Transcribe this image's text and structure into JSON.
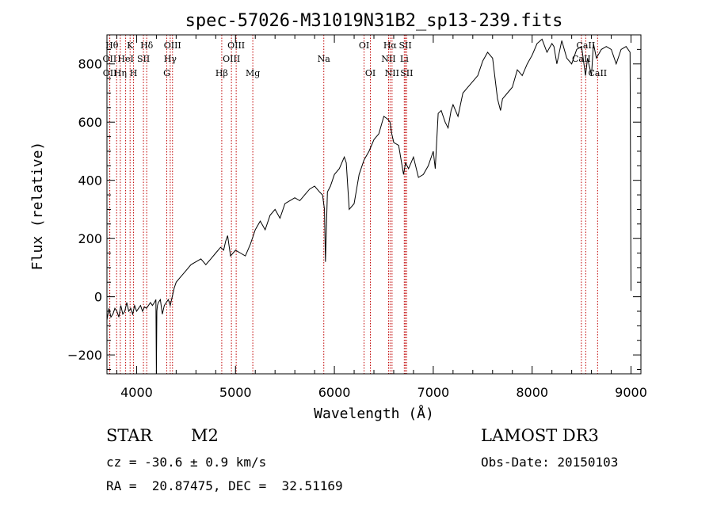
{
  "chart_data": {
    "type": "line",
    "title": "spec-57026-M31019N31B2_sp13-239.fits",
    "xlabel": "Wavelength (Å)",
    "ylabel": "Flux (relative)",
    "xlim": [
      3700,
      9100
    ],
    "ylim": [
      -265,
      900
    ],
    "xticks": [
      4000,
      5000,
      6000,
      7000,
      8000,
      9000
    ],
    "yticks": [
      -200,
      0,
      200,
      400,
      600,
      800
    ],
    "series": [
      {
        "name": "flux",
        "x": [
          3700,
          3720,
          3740,
          3760,
          3780,
          3800,
          3820,
          3840,
          3860,
          3880,
          3900,
          3920,
          3940,
          3960,
          3980,
          4000,
          4020,
          4040,
          4060,
          4080,
          4100,
          4120,
          4140,
          4160,
          4180,
          4195,
          4200,
          4205,
          4210,
          4220,
          4240,
          4260,
          4280,
          4300,
          4320,
          4340,
          4360,
          4380,
          4400,
          4450,
          4500,
          4550,
          4600,
          4650,
          4700,
          4750,
          4800,
          4850,
          4880,
          4900,
          4920,
          4950,
          5000,
          5050,
          5100,
          5150,
          5200,
          5250,
          5300,
          5350,
          5400,
          5450,
          5500,
          5550,
          5600,
          5650,
          5700,
          5750,
          5800,
          5850,
          5880,
          5900,
          5910,
          5930,
          5960,
          6000,
          6050,
          6100,
          6120,
          6150,
          6200,
          6250,
          6300,
          6350,
          6400,
          6450,
          6500,
          6540,
          6563,
          6580,
          6600,
          6650,
          6700,
          6720,
          6750,
          6800,
          6850,
          6900,
          6950,
          7000,
          7020,
          7050,
          7080,
          7120,
          7150,
          7180,
          7200,
          7250,
          7300,
          7350,
          7400,
          7450,
          7500,
          7550,
          7600,
          7650,
          7680,
          7700,
          7750,
          7800,
          7850,
          7900,
          7950,
          8000,
          8050,
          8100,
          8150,
          8200,
          8220,
          8250,
          8300,
          8350,
          8400,
          8450,
          8500,
          8540,
          8560,
          8600,
          8620,
          8650,
          8700,
          8750,
          8800,
          8850,
          8900,
          8950,
          8990,
          9000
        ],
        "values": [
          -80,
          -40,
          -70,
          -60,
          -40,
          -50,
          -70,
          -30,
          -60,
          -50,
          -20,
          -50,
          -40,
          -60,
          -30,
          -50,
          -40,
          -30,
          -50,
          -35,
          -40,
          -30,
          -20,
          -30,
          -20,
          -10,
          -270,
          -50,
          -30,
          -20,
          -10,
          -60,
          -30,
          -20,
          -10,
          -30,
          0,
          30,
          50,
          70,
          90,
          110,
          120,
          130,
          110,
          130,
          150,
          170,
          160,
          190,
          210,
          140,
          160,
          150,
          140,
          180,
          230,
          260,
          230,
          280,
          300,
          270,
          320,
          330,
          340,
          330,
          350,
          370,
          380,
          360,
          350,
          300,
          120,
          360,
          380,
          420,
          440,
          480,
          460,
          300,
          320,
          420,
          470,
          500,
          540,
          560,
          620,
          610,
          600,
          560,
          530,
          520,
          420,
          460,
          440,
          480,
          410,
          420,
          450,
          500,
          440,
          630,
          640,
          600,
          580,
          640,
          660,
          620,
          700,
          720,
          740,
          760,
          810,
          840,
          820,
          680,
          640,
          680,
          700,
          720,
          780,
          760,
          800,
          830,
          870,
          885,
          840,
          870,
          860,
          800,
          880,
          820,
          800,
          850,
          860,
          760,
          820,
          760,
          870,
          820,
          850,
          860,
          850,
          800,
          850,
          860,
          840,
          20
        ]
      }
    ],
    "lines": [
      {
        "name": "Hθ",
        "wave": 3798
      },
      {
        "name": "OII",
        "wave": 3727
      },
      {
        "name": "OII",
        "wave": 3729
      },
      {
        "name": "Hη",
        "wave": 3835
      },
      {
        "name": "K",
        "wave": 3934
      },
      {
        "name": "HeI",
        "wave": 3889
      },
      {
        "name": "H",
        "wave": 3969
      },
      {
        "name": "Hδ",
        "wave": 4102
      },
      {
        "name": "SII",
        "wave": 4069
      },
      {
        "name": "OIII",
        "wave": 4363
      },
      {
        "name": "Hγ",
        "wave": 4340
      },
      {
        "name": "G",
        "wave": 4305
      },
      {
        "name": "Hβ",
        "wave": 4861
      },
      {
        "name": "OIII",
        "wave": 4959
      },
      {
        "name": "OIII",
        "wave": 5007
      },
      {
        "name": "Mg",
        "wave": 5175
      },
      {
        "name": "Na",
        "wave": 5893
      },
      {
        "name": "OI",
        "wave": 6300
      },
      {
        "name": "OI",
        "wave": 6364
      },
      {
        "name": "Hα",
        "wave": 6563
      },
      {
        "name": "NII",
        "wave": 6548
      },
      {
        "name": "NII",
        "wave": 6583
      },
      {
        "name": "SII",
        "wave": 6717
      },
      {
        "name": "SII",
        "wave": 6731
      },
      {
        "name": "Li",
        "wave": 6707
      },
      {
        "name": "CaII",
        "wave": 8542
      },
      {
        "name": "CaII",
        "wave": 8498
      },
      {
        "name": "CaII",
        "wave": 8662
      }
    ],
    "line_labels": [
      {
        "text": "Hθ",
        "wave": 3750,
        "row": 1
      },
      {
        "text": "K",
        "wave": 3934,
        "row": 1
      },
      {
        "text": "Hδ",
        "wave": 4102,
        "row": 1
      },
      {
        "text": "OIII",
        "wave": 4363,
        "row": 1
      },
      {
        "text": "OIII",
        "wave": 5007,
        "row": 1
      },
      {
        "text": "OI",
        "wave": 6300,
        "row": 1
      },
      {
        "text": "Hα",
        "wave": 6563,
        "row": 1
      },
      {
        "text": "SII",
        "wave": 6717,
        "row": 1
      },
      {
        "text": "CaII",
        "wave": 8542,
        "row": 1
      },
      {
        "text": "OII",
        "wave": 3727,
        "row": 2
      },
      {
        "text": "HeI",
        "wave": 3889,
        "row": 2
      },
      {
        "text": "SII",
        "wave": 4069,
        "row": 2
      },
      {
        "text": "Hγ",
        "wave": 4340,
        "row": 2
      },
      {
        "text": "OIII",
        "wave": 4959,
        "row": 2
      },
      {
        "text": "Na",
        "wave": 5893,
        "row": 2
      },
      {
        "text": "NII",
        "wave": 6548,
        "row": 2
      },
      {
        "text": "Li",
        "wave": 6707,
        "row": 2
      },
      {
        "text": "CaII",
        "wave": 8498,
        "row": 2
      },
      {
        "text": "OII",
        "wave": 3729,
        "row": 3
      },
      {
        "text": "Hη",
        "wave": 3835,
        "row": 3
      },
      {
        "text": "H",
        "wave": 3969,
        "row": 3
      },
      {
        "text": "G",
        "wave": 4305,
        "row": 3
      },
      {
        "text": "Hβ",
        "wave": 4861,
        "row": 3
      },
      {
        "text": "Mg",
        "wave": 5175,
        "row": 3
      },
      {
        "text": "OI",
        "wave": 6364,
        "row": 3
      },
      {
        "text": "NII",
        "wave": 6583,
        "row": 3
      },
      {
        "text": "SII",
        "wave": 6731,
        "row": 3
      },
      {
        "text": "CaII",
        "wave": 8662,
        "row": 3
      }
    ]
  },
  "info": {
    "class_label": "STAR",
    "subclass": "M2",
    "survey": "LAMOST DR3",
    "cz": "cz = -30.6 ± 0.9 km/s",
    "obs_date": "Obs-Date: 20150103",
    "coords": "RA =  20.87475, DEC =  32.51169"
  }
}
